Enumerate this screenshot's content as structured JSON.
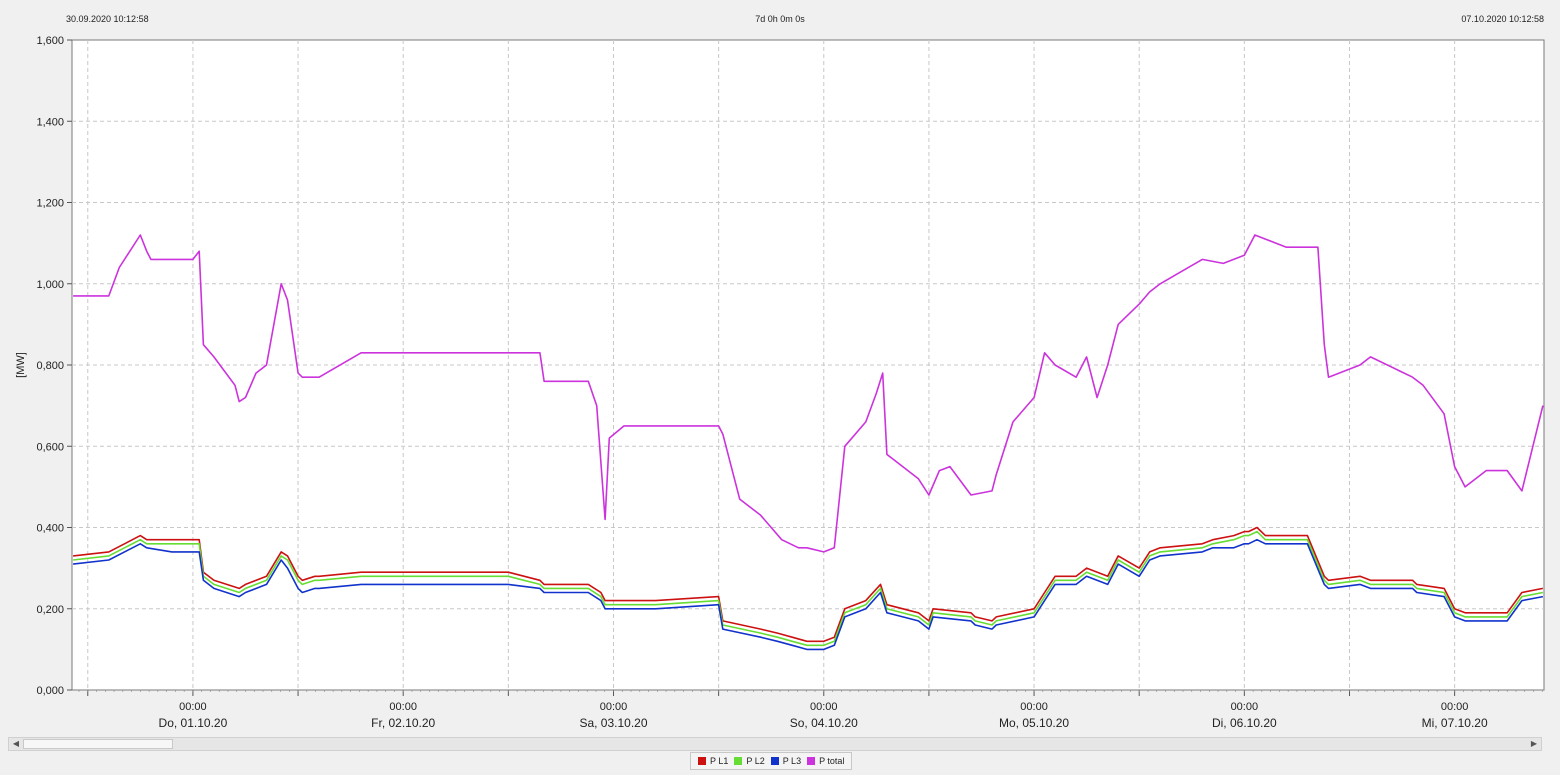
{
  "header": {
    "start": "30.09.2020 10:12:58",
    "duration": "7d 0h 0m 0s",
    "end": "07.10.2020 10:12:58"
  },
  "chart_data": {
    "type": "line",
    "title": "",
    "xlabel": "",
    "ylabel": "[MW]",
    "xlim": [
      -0.575,
      6.425
    ],
    "ylim": [
      0,
      1.6
    ],
    "x_units": "days since 01.10.20 00:00",
    "yticks": [
      {
        "v": 0,
        "label": "0,000"
      },
      {
        "v": 0.2,
        "label": "0,200"
      },
      {
        "v": 0.4,
        "label": "0,400"
      },
      {
        "v": 0.6,
        "label": "0,600"
      },
      {
        "v": 0.8,
        "label": "0,800"
      },
      {
        "v": 1.0,
        "label": "1,000"
      },
      {
        "v": 1.2,
        "label": "1,200"
      },
      {
        "v": 1.4,
        "label": "1,400"
      },
      {
        "v": 1.6,
        "label": "1,600"
      }
    ],
    "xticks": [
      {
        "v": 0,
        "time": "00:00",
        "date": "Do, 01.10.20"
      },
      {
        "v": 1,
        "time": "00:00",
        "date": "Fr, 02.10.20"
      },
      {
        "v": 2,
        "time": "00:00",
        "date": "Sa, 03.10.20"
      },
      {
        "v": 3,
        "time": "00:00",
        "date": "So, 04.10.20"
      },
      {
        "v": 4,
        "time": "00:00",
        "date": "Mo, 05.10.20"
      },
      {
        "v": 5,
        "time": "00:00",
        "date": "Di, 06.10.20"
      },
      {
        "v": 6,
        "time": "00:00",
        "date": "Mi, 07.10.20"
      }
    ],
    "grid": true,
    "legend_position": "bottom-center",
    "series": [
      {
        "name": "P L1",
        "color": "#cc1111",
        "x": [
          -0.57,
          -0.4,
          -0.25,
          -0.22,
          -0.1,
          0.03,
          0.05,
          0.1,
          0.22,
          0.25,
          0.35,
          0.42,
          0.45,
          0.5,
          0.52,
          0.58,
          0.6,
          0.8,
          1.0,
          1.2,
          1.5,
          1.65,
          1.67,
          1.88,
          1.94,
          1.96,
          2.05,
          2.2,
          2.5,
          2.52,
          2.7,
          2.78,
          2.85,
          2.92,
          3.0,
          3.05,
          3.1,
          3.2,
          3.27,
          3.3,
          3.45,
          3.5,
          3.52,
          3.7,
          3.72,
          3.8,
          3.82,
          4.0,
          4.05,
          4.1,
          4.2,
          4.25,
          4.35,
          4.4,
          4.5,
          4.55,
          4.6,
          4.8,
          4.85,
          4.95,
          5.0,
          5.02,
          5.06,
          5.1,
          5.2,
          5.3,
          5.38,
          5.4,
          5.55,
          5.6,
          5.8,
          5.82,
          5.95,
          6.0,
          6.05,
          6.15,
          6.25,
          6.32,
          6.42
        ],
        "values": [
          0.33,
          0.34,
          0.38,
          0.37,
          0.37,
          0.37,
          0.29,
          0.27,
          0.25,
          0.26,
          0.28,
          0.34,
          0.33,
          0.28,
          0.27,
          0.28,
          0.28,
          0.29,
          0.29,
          0.29,
          0.29,
          0.27,
          0.26,
          0.26,
          0.24,
          0.22,
          0.22,
          0.22,
          0.23,
          0.17,
          0.15,
          0.14,
          0.13,
          0.12,
          0.12,
          0.13,
          0.2,
          0.22,
          0.26,
          0.21,
          0.19,
          0.17,
          0.2,
          0.19,
          0.18,
          0.17,
          0.18,
          0.2,
          0.24,
          0.28,
          0.28,
          0.3,
          0.28,
          0.33,
          0.3,
          0.34,
          0.35,
          0.36,
          0.37,
          0.38,
          0.39,
          0.39,
          0.4,
          0.38,
          0.38,
          0.38,
          0.28,
          0.27,
          0.28,
          0.27,
          0.27,
          0.26,
          0.25,
          0.2,
          0.19,
          0.19,
          0.19,
          0.24,
          0.25
        ]
      },
      {
        "name": "P L2",
        "color": "#66dd33",
        "x": [
          -0.57,
          -0.4,
          -0.25,
          -0.22,
          -0.1,
          0.03,
          0.05,
          0.1,
          0.22,
          0.25,
          0.35,
          0.42,
          0.45,
          0.5,
          0.52,
          0.58,
          0.6,
          0.8,
          1.0,
          1.2,
          1.5,
          1.65,
          1.67,
          1.88,
          1.94,
          1.96,
          2.05,
          2.2,
          2.5,
          2.52,
          2.7,
          2.78,
          2.85,
          2.92,
          3.0,
          3.05,
          3.1,
          3.2,
          3.27,
          3.3,
          3.45,
          3.5,
          3.52,
          3.7,
          3.72,
          3.8,
          3.82,
          4.0,
          4.05,
          4.1,
          4.2,
          4.25,
          4.35,
          4.4,
          4.5,
          4.55,
          4.6,
          4.8,
          4.85,
          4.95,
          5.0,
          5.02,
          5.06,
          5.1,
          5.2,
          5.3,
          5.38,
          5.4,
          5.55,
          5.6,
          5.8,
          5.82,
          5.95,
          6.0,
          6.05,
          6.15,
          6.25,
          6.32,
          6.42
        ],
        "values": [
          0.32,
          0.33,
          0.37,
          0.36,
          0.36,
          0.36,
          0.28,
          0.26,
          0.24,
          0.25,
          0.27,
          0.33,
          0.32,
          0.27,
          0.26,
          0.27,
          0.27,
          0.28,
          0.28,
          0.28,
          0.28,
          0.26,
          0.25,
          0.25,
          0.23,
          0.21,
          0.21,
          0.21,
          0.22,
          0.16,
          0.14,
          0.13,
          0.12,
          0.11,
          0.11,
          0.12,
          0.19,
          0.21,
          0.25,
          0.2,
          0.18,
          0.16,
          0.19,
          0.18,
          0.17,
          0.16,
          0.17,
          0.19,
          0.23,
          0.27,
          0.27,
          0.29,
          0.27,
          0.32,
          0.29,
          0.33,
          0.34,
          0.35,
          0.36,
          0.37,
          0.38,
          0.38,
          0.39,
          0.37,
          0.37,
          0.37,
          0.27,
          0.26,
          0.27,
          0.26,
          0.26,
          0.25,
          0.24,
          0.19,
          0.18,
          0.18,
          0.18,
          0.23,
          0.24
        ]
      },
      {
        "name": "P L3",
        "color": "#1133cc",
        "x": [
          -0.57,
          -0.4,
          -0.25,
          -0.22,
          -0.1,
          0.03,
          0.05,
          0.1,
          0.22,
          0.25,
          0.35,
          0.42,
          0.45,
          0.5,
          0.52,
          0.58,
          0.6,
          0.8,
          1.0,
          1.2,
          1.5,
          1.65,
          1.67,
          1.88,
          1.94,
          1.96,
          2.05,
          2.2,
          2.5,
          2.52,
          2.7,
          2.78,
          2.85,
          2.92,
          3.0,
          3.05,
          3.1,
          3.2,
          3.27,
          3.3,
          3.45,
          3.5,
          3.52,
          3.7,
          3.72,
          3.8,
          3.82,
          4.0,
          4.05,
          4.1,
          4.2,
          4.25,
          4.35,
          4.4,
          4.5,
          4.55,
          4.6,
          4.8,
          4.85,
          4.95,
          5.0,
          5.02,
          5.06,
          5.1,
          5.2,
          5.3,
          5.38,
          5.4,
          5.55,
          5.6,
          5.8,
          5.82,
          5.95,
          6.0,
          6.05,
          6.15,
          6.25,
          6.32,
          6.42
        ],
        "values": [
          0.31,
          0.32,
          0.36,
          0.35,
          0.34,
          0.34,
          0.27,
          0.25,
          0.23,
          0.24,
          0.26,
          0.32,
          0.3,
          0.25,
          0.24,
          0.25,
          0.25,
          0.26,
          0.26,
          0.26,
          0.26,
          0.25,
          0.24,
          0.24,
          0.22,
          0.2,
          0.2,
          0.2,
          0.21,
          0.15,
          0.13,
          0.12,
          0.11,
          0.1,
          0.1,
          0.11,
          0.18,
          0.2,
          0.24,
          0.19,
          0.17,
          0.15,
          0.18,
          0.17,
          0.16,
          0.15,
          0.16,
          0.18,
          0.22,
          0.26,
          0.26,
          0.28,
          0.26,
          0.31,
          0.28,
          0.32,
          0.33,
          0.34,
          0.35,
          0.35,
          0.36,
          0.36,
          0.37,
          0.36,
          0.36,
          0.36,
          0.26,
          0.25,
          0.26,
          0.25,
          0.25,
          0.24,
          0.23,
          0.18,
          0.17,
          0.17,
          0.17,
          0.22,
          0.23
        ]
      },
      {
        "name": "P total",
        "color": "#cc33dd",
        "x": [
          -0.57,
          -0.4,
          -0.35,
          -0.25,
          -0.22,
          -0.2,
          0.0,
          0.03,
          0.05,
          0.1,
          0.2,
          0.22,
          0.25,
          0.3,
          0.35,
          0.42,
          0.45,
          0.5,
          0.52,
          0.6,
          0.8,
          1.0,
          1.2,
          1.5,
          1.65,
          1.67,
          1.88,
          1.92,
          1.96,
          1.98,
          2.05,
          2.2,
          2.5,
          2.52,
          2.6,
          2.7,
          2.75,
          2.8,
          2.88,
          2.92,
          3.0,
          3.05,
          3.1,
          3.2,
          3.25,
          3.28,
          3.3,
          3.45,
          3.5,
          3.55,
          3.6,
          3.7,
          3.8,
          3.82,
          3.9,
          4.0,
          4.05,
          4.1,
          4.2,
          4.25,
          4.3,
          4.35,
          4.4,
          4.5,
          4.55,
          4.6,
          4.7,
          4.8,
          4.9,
          5.0,
          5.05,
          5.1,
          5.2,
          5.35,
          5.38,
          5.4,
          5.55,
          5.6,
          5.8,
          5.85,
          5.95,
          6.0,
          6.05,
          6.15,
          6.25,
          6.32,
          6.42
        ],
        "values": [
          0.97,
          0.97,
          1.04,
          1.12,
          1.08,
          1.06,
          1.06,
          1.08,
          0.85,
          0.82,
          0.75,
          0.71,
          0.72,
          0.78,
          0.8,
          1.0,
          0.96,
          0.78,
          0.77,
          0.77,
          0.83,
          0.83,
          0.83,
          0.83,
          0.83,
          0.76,
          0.76,
          0.7,
          0.42,
          0.62,
          0.65,
          0.65,
          0.65,
          0.63,
          0.47,
          0.43,
          0.4,
          0.37,
          0.35,
          0.35,
          0.34,
          0.35,
          0.6,
          0.66,
          0.73,
          0.78,
          0.58,
          0.52,
          0.48,
          0.54,
          0.55,
          0.48,
          0.49,
          0.53,
          0.66,
          0.72,
          0.83,
          0.8,
          0.77,
          0.82,
          0.72,
          0.8,
          0.9,
          0.95,
          0.98,
          1.0,
          1.03,
          1.06,
          1.05,
          1.07,
          1.12,
          1.11,
          1.09,
          1.09,
          0.85,
          0.77,
          0.8,
          0.82,
          0.77,
          0.75,
          0.68,
          0.55,
          0.5,
          0.54,
          0.54,
          0.49,
          0.7
        ]
      }
    ]
  }
}
